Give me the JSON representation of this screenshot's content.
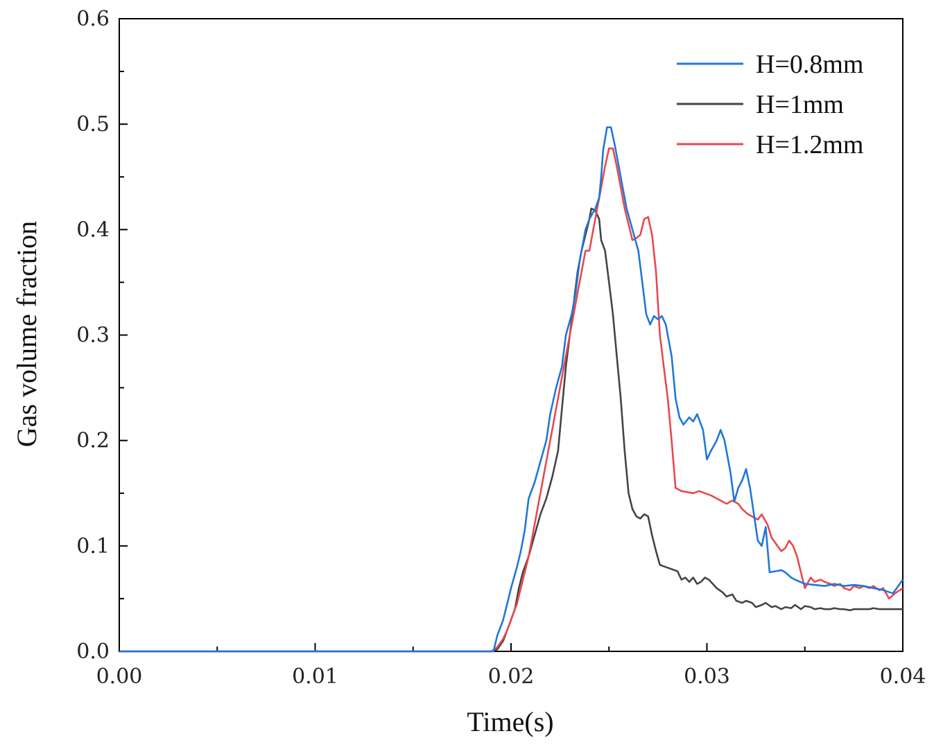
{
  "chart_data": {
    "type": "line",
    "title": "",
    "xlabel": "Time(s)",
    "ylabel": "Gas volume fraction",
    "xlim": [
      0,
      0.04
    ],
    "ylim": [
      0,
      0.6
    ],
    "xticks": [
      "0.00",
      "0.01",
      "0.02",
      "0.03",
      "0.04"
    ],
    "yticks": [
      "0.0",
      "0.1",
      "0.2",
      "0.3",
      "0.4",
      "0.5",
      "0.6"
    ],
    "legend_position": "top-right",
    "series": [
      {
        "name": "H=0.8mm",
        "color": "#1f77d9",
        "points": [
          [
            0,
            0
          ],
          [
            0.019,
            0
          ],
          [
            0.0191,
            0
          ],
          [
            0.0193,
            0.015
          ],
          [
            0.0196,
            0.03
          ],
          [
            0.0198,
            0.045
          ],
          [
            0.02,
            0.06
          ],
          [
            0.0203,
            0.08
          ],
          [
            0.0205,
            0.095
          ],
          [
            0.0207,
            0.115
          ],
          [
            0.0209,
            0.145
          ],
          [
            0.0212,
            0.16
          ],
          [
            0.0215,
            0.18
          ],
          [
            0.0218,
            0.2
          ],
          [
            0.022,
            0.225
          ],
          [
            0.0223,
            0.25
          ],
          [
            0.0226,
            0.27
          ],
          [
            0.0228,
            0.3
          ],
          [
            0.0231,
            0.32
          ],
          [
            0.0233,
            0.34
          ],
          [
            0.0235,
            0.37
          ],
          [
            0.0238,
            0.4
          ],
          [
            0.024,
            0.41
          ],
          [
            0.0243,
            0.42
          ],
          [
            0.0245,
            0.43
          ],
          [
            0.0246,
            0.45
          ],
          [
            0.0247,
            0.475
          ],
          [
            0.0249,
            0.497
          ],
          [
            0.0251,
            0.497
          ],
          [
            0.0253,
            0.48
          ],
          [
            0.0255,
            0.46
          ],
          [
            0.0257,
            0.44
          ],
          [
            0.0259,
            0.42
          ],
          [
            0.0262,
            0.4
          ],
          [
            0.0265,
            0.38
          ],
          [
            0.0267,
            0.35
          ],
          [
            0.0269,
            0.32
          ],
          [
            0.0271,
            0.31
          ],
          [
            0.0273,
            0.318
          ],
          [
            0.0275,
            0.315
          ],
          [
            0.0277,
            0.318
          ],
          [
            0.0279,
            0.31
          ],
          [
            0.0282,
            0.28
          ],
          [
            0.0284,
            0.24
          ],
          [
            0.0286,
            0.222
          ],
          [
            0.0288,
            0.215
          ],
          [
            0.0291,
            0.222
          ],
          [
            0.0293,
            0.218
          ],
          [
            0.0295,
            0.225
          ],
          [
            0.0298,
            0.21
          ],
          [
            0.03,
            0.182
          ],
          [
            0.0302,
            0.19
          ],
          [
            0.0305,
            0.2
          ],
          [
            0.0307,
            0.21
          ],
          [
            0.0309,
            0.2
          ],
          [
            0.0312,
            0.17
          ],
          [
            0.0314,
            0.142
          ],
          [
            0.0316,
            0.155
          ],
          [
            0.0318,
            0.162
          ],
          [
            0.032,
            0.173
          ],
          [
            0.0322,
            0.155
          ],
          [
            0.0324,
            0.13
          ],
          [
            0.0326,
            0.105
          ],
          [
            0.0328,
            0.1
          ],
          [
            0.033,
            0.118
          ],
          [
            0.0332,
            0.075
          ],
          [
            0.0335,
            0.076
          ],
          [
            0.0338,
            0.077
          ],
          [
            0.034,
            0.075
          ],
          [
            0.0343,
            0.07
          ],
          [
            0.0345,
            0.068
          ],
          [
            0.035,
            0.064
          ],
          [
            0.0355,
            0.063
          ],
          [
            0.036,
            0.062
          ],
          [
            0.0365,
            0.064
          ],
          [
            0.037,
            0.062
          ],
          [
            0.0375,
            0.063
          ],
          [
            0.038,
            0.062
          ],
          [
            0.0385,
            0.06
          ],
          [
            0.039,
            0.058
          ],
          [
            0.0395,
            0.055
          ],
          [
            0.04,
            0.068
          ]
        ]
      },
      {
        "name": "H=1mm",
        "color": "#444444",
        "points": [
          [
            0,
            0
          ],
          [
            0.019,
            0
          ],
          [
            0.0193,
            0.002
          ],
          [
            0.0196,
            0.01
          ],
          [
            0.0198,
            0.02
          ],
          [
            0.02,
            0.03
          ],
          [
            0.0202,
            0.04
          ],
          [
            0.0204,
            0.06
          ],
          [
            0.0206,
            0.075
          ],
          [
            0.0209,
            0.09
          ],
          [
            0.0212,
            0.11
          ],
          [
            0.0215,
            0.13
          ],
          [
            0.0218,
            0.145
          ],
          [
            0.0221,
            0.165
          ],
          [
            0.0224,
            0.19
          ],
          [
            0.0226,
            0.23
          ],
          [
            0.0228,
            0.27
          ],
          [
            0.023,
            0.3
          ],
          [
            0.0232,
            0.33
          ],
          [
            0.0234,
            0.36
          ],
          [
            0.0236,
            0.38
          ],
          [
            0.0238,
            0.395
          ],
          [
            0.024,
            0.41
          ],
          [
            0.0241,
            0.42
          ],
          [
            0.0243,
            0.418
          ],
          [
            0.0245,
            0.41
          ],
          [
            0.0246,
            0.39
          ],
          [
            0.0248,
            0.38
          ],
          [
            0.025,
            0.35
          ],
          [
            0.0252,
            0.32
          ],
          [
            0.0254,
            0.28
          ],
          [
            0.0256,
            0.24
          ],
          [
            0.0258,
            0.19
          ],
          [
            0.026,
            0.15
          ],
          [
            0.0262,
            0.135
          ],
          [
            0.0264,
            0.128
          ],
          [
            0.0266,
            0.126
          ],
          [
            0.0268,
            0.13
          ],
          [
            0.027,
            0.128
          ],
          [
            0.0272,
            0.11
          ],
          [
            0.0274,
            0.095
          ],
          [
            0.0276,
            0.082
          ],
          [
            0.0279,
            0.08
          ],
          [
            0.0282,
            0.078
          ],
          [
            0.0285,
            0.076
          ],
          [
            0.0287,
            0.068
          ],
          [
            0.0289,
            0.07
          ],
          [
            0.0291,
            0.066
          ],
          [
            0.0293,
            0.07
          ],
          [
            0.0295,
            0.064
          ],
          [
            0.0297,
            0.066
          ],
          [
            0.0299,
            0.07
          ],
          [
            0.0301,
            0.068
          ],
          [
            0.0303,
            0.064
          ],
          [
            0.0305,
            0.06
          ],
          [
            0.0308,
            0.056
          ],
          [
            0.031,
            0.052
          ],
          [
            0.0313,
            0.054
          ],
          [
            0.0315,
            0.048
          ],
          [
            0.0318,
            0.046
          ],
          [
            0.032,
            0.048
          ],
          [
            0.0323,
            0.046
          ],
          [
            0.0325,
            0.042
          ],
          [
            0.0328,
            0.044
          ],
          [
            0.033,
            0.046
          ],
          [
            0.0333,
            0.042
          ],
          [
            0.0335,
            0.043
          ],
          [
            0.0338,
            0.04
          ],
          [
            0.034,
            0.042
          ],
          [
            0.0343,
            0.041
          ],
          [
            0.0345,
            0.044
          ],
          [
            0.0348,
            0.04
          ],
          [
            0.035,
            0.043
          ],
          [
            0.0353,
            0.042
          ],
          [
            0.0355,
            0.04
          ],
          [
            0.0358,
            0.041
          ],
          [
            0.036,
            0.04
          ],
          [
            0.0363,
            0.04
          ],
          [
            0.0365,
            0.041
          ],
          [
            0.0368,
            0.04
          ],
          [
            0.037,
            0.04
          ],
          [
            0.0373,
            0.039
          ],
          [
            0.0375,
            0.04
          ],
          [
            0.0378,
            0.04
          ],
          [
            0.038,
            0.04
          ],
          [
            0.0383,
            0.04
          ],
          [
            0.0385,
            0.041
          ],
          [
            0.0388,
            0.04
          ],
          [
            0.039,
            0.04
          ],
          [
            0.0393,
            0.04
          ],
          [
            0.0396,
            0.04
          ],
          [
            0.04,
            0.04
          ]
        ]
      },
      {
        "name": "H=1.2mm",
        "color": "#e8484e",
        "points": [
          [
            0,
            0
          ],
          [
            0.019,
            0
          ],
          [
            0.0193,
            0.004
          ],
          [
            0.0196,
            0.012
          ],
          [
            0.0198,
            0.02
          ],
          [
            0.02,
            0.03
          ],
          [
            0.0203,
            0.045
          ],
          [
            0.0205,
            0.06
          ],
          [
            0.0207,
            0.075
          ],
          [
            0.0209,
            0.09
          ],
          [
            0.0211,
            0.11
          ],
          [
            0.0213,
            0.13
          ],
          [
            0.0215,
            0.15
          ],
          [
            0.0217,
            0.17
          ],
          [
            0.022,
            0.2
          ],
          [
            0.0223,
            0.23
          ],
          [
            0.0226,
            0.26
          ],
          [
            0.0229,
            0.29
          ],
          [
            0.0232,
            0.32
          ],
          [
            0.0234,
            0.34
          ],
          [
            0.0236,
            0.36
          ],
          [
            0.0238,
            0.38
          ],
          [
            0.024,
            0.38
          ],
          [
            0.0242,
            0.4
          ],
          [
            0.0244,
            0.42
          ],
          [
            0.0246,
            0.44
          ],
          [
            0.0248,
            0.46
          ],
          [
            0.025,
            0.477
          ],
          [
            0.0252,
            0.477
          ],
          [
            0.0254,
            0.46
          ],
          [
            0.0256,
            0.44
          ],
          [
            0.0258,
            0.42
          ],
          [
            0.026,
            0.405
          ],
          [
            0.0262,
            0.39
          ],
          [
            0.0264,
            0.392
          ],
          [
            0.0266,
            0.395
          ],
          [
            0.0268,
            0.41
          ],
          [
            0.027,
            0.412
          ],
          [
            0.0272,
            0.395
          ],
          [
            0.0274,
            0.36
          ],
          [
            0.0276,
            0.3
          ],
          [
            0.0278,
            0.27
          ],
          [
            0.028,
            0.24
          ],
          [
            0.0282,
            0.2
          ],
          [
            0.0284,
            0.155
          ],
          [
            0.0287,
            0.152
          ],
          [
            0.029,
            0.151
          ],
          [
            0.0293,
            0.15
          ],
          [
            0.0296,
            0.152
          ],
          [
            0.0299,
            0.15
          ],
          [
            0.0302,
            0.148
          ],
          [
            0.0305,
            0.145
          ],
          [
            0.0308,
            0.142
          ],
          [
            0.031,
            0.14
          ],
          [
            0.0313,
            0.143
          ],
          [
            0.0316,
            0.14
          ],
          [
            0.0318,
            0.135
          ],
          [
            0.0321,
            0.13
          ],
          [
            0.0323,
            0.128
          ],
          [
            0.0326,
            0.125
          ],
          [
            0.0328,
            0.13
          ],
          [
            0.0331,
            0.12
          ],
          [
            0.0333,
            0.108
          ],
          [
            0.0336,
            0.1
          ],
          [
            0.0338,
            0.095
          ],
          [
            0.034,
            0.098
          ],
          [
            0.0342,
            0.105
          ],
          [
            0.0344,
            0.1
          ],
          [
            0.0346,
            0.09
          ],
          [
            0.0348,
            0.075
          ],
          [
            0.035,
            0.06
          ],
          [
            0.0353,
            0.07
          ],
          [
            0.0355,
            0.066
          ],
          [
            0.0358,
            0.068
          ],
          [
            0.036,
            0.066
          ],
          [
            0.0363,
            0.064
          ],
          [
            0.0365,
            0.062
          ],
          [
            0.0368,
            0.064
          ],
          [
            0.037,
            0.06
          ],
          [
            0.0373,
            0.058
          ],
          [
            0.0375,
            0.062
          ],
          [
            0.0378,
            0.06
          ],
          [
            0.038,
            0.062
          ],
          [
            0.0383,
            0.06
          ],
          [
            0.0385,
            0.062
          ],
          [
            0.0388,
            0.058
          ],
          [
            0.039,
            0.06
          ],
          [
            0.0393,
            0.05
          ],
          [
            0.0396,
            0.055
          ],
          [
            0.04,
            0.06
          ]
        ]
      }
    ]
  }
}
